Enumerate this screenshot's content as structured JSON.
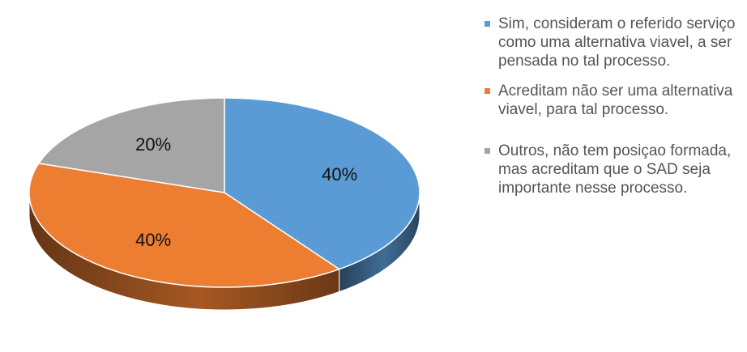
{
  "chart_data": {
    "type": "pie",
    "style": "3d",
    "title": "",
    "categories": [
      "Sim, consideram o referido serviço como uma alternativa viavel, a ser pensada no tal processo.",
      "Acreditam não ser uma alternativa viavel, para tal processo.",
      "Outros, não tem posiçao formada, mas acreditam que o SAD seja importante nesse processo."
    ],
    "values": [
      40,
      40,
      20
    ],
    "data_labels": [
      "40%",
      "40%",
      "20%"
    ],
    "colors": [
      "#5B9BD5",
      "#ED7D31",
      "#A5A5A5"
    ],
    "legend_position": "right"
  }
}
